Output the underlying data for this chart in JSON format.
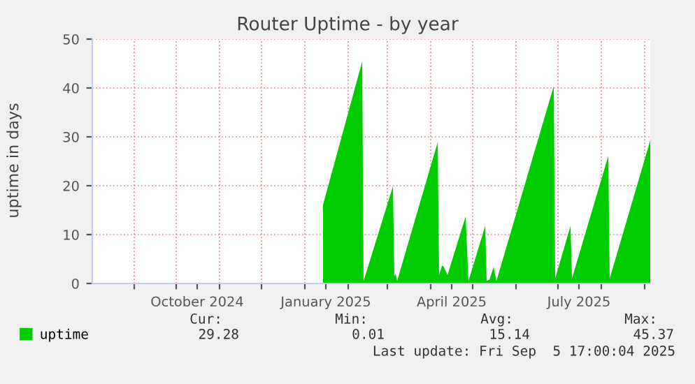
{
  "chart_data": {
    "type": "area",
    "title": "Router Uptime - by year",
    "ylabel": "uptime in days",
    "x": [
      "2025-01-14",
      "2025-02-11",
      "2025-02-12",
      "2025-03-05",
      "2025-03-06",
      "2025-03-07",
      "2025-03-08",
      "2025-04-06",
      "2025-04-07",
      "2025-04-09",
      "2025-04-10",
      "2025-04-13",
      "2025-04-26",
      "2025-04-28",
      "2025-05-10",
      "2025-05-11",
      "2025-05-13",
      "2025-05-16",
      "2025-05-18",
      "2025-06-28",
      "2025-06-29",
      "2025-07-10",
      "2025-07-11",
      "2025-08-06",
      "2025-08-07",
      "2025-09-05"
    ],
    "series": [
      {
        "name": "uptime",
        "color": "#00cc00",
        "values": [
          16.1,
          45.4,
          0.5,
          19.9,
          1.5,
          2,
          0.5,
          28.9,
          1.7,
          3.6,
          3.6,
          1.7,
          13.7,
          0.5,
          11.8,
          0.5,
          0.8,
          3.4,
          0.5,
          40.4,
          1,
          11.8,
          1,
          26.1,
          1,
          29.28
        ]
      }
    ],
    "xlim": [
      "2024-08-02",
      "2025-09-05"
    ],
    "xticks": [
      {
        "value": "2024-09-01",
        "label": null
      },
      {
        "value": "2024-10-01",
        "label": null
      },
      {
        "value": "2024-10-16",
        "label": "October 2024"
      },
      {
        "value": "2024-11-01",
        "label": null
      },
      {
        "value": "2024-12-01",
        "label": null
      },
      {
        "value": "2025-01-01",
        "label": null
      },
      {
        "value": "2025-01-16",
        "label": "January 2025"
      },
      {
        "value": "2025-02-01",
        "label": null
      },
      {
        "value": "2025-03-01",
        "label": null
      },
      {
        "value": "2025-04-01",
        "label": null
      },
      {
        "value": "2025-04-16",
        "label": "April 2025"
      },
      {
        "value": "2025-05-01",
        "label": null
      },
      {
        "value": "2025-06-01",
        "label": null
      },
      {
        "value": "2025-07-01",
        "label": null
      },
      {
        "value": "2025-07-16",
        "label": "July 2025"
      },
      {
        "value": "2025-08-01",
        "label": null
      },
      {
        "value": "2025-09-01",
        "label": null
      }
    ],
    "ylim": [
      0,
      50
    ],
    "yticks": [
      0,
      10,
      20,
      30,
      40,
      50
    ],
    "grid": true,
    "legend": "bottom left",
    "annotations": [
      "Cur:",
      "Min:",
      "Avg:",
      "Max:",
      "29.28",
      "0.01",
      "15.14",
      "45.37",
      "Last update: Fri Sep  5 17:00:04 2025"
    ]
  }
}
